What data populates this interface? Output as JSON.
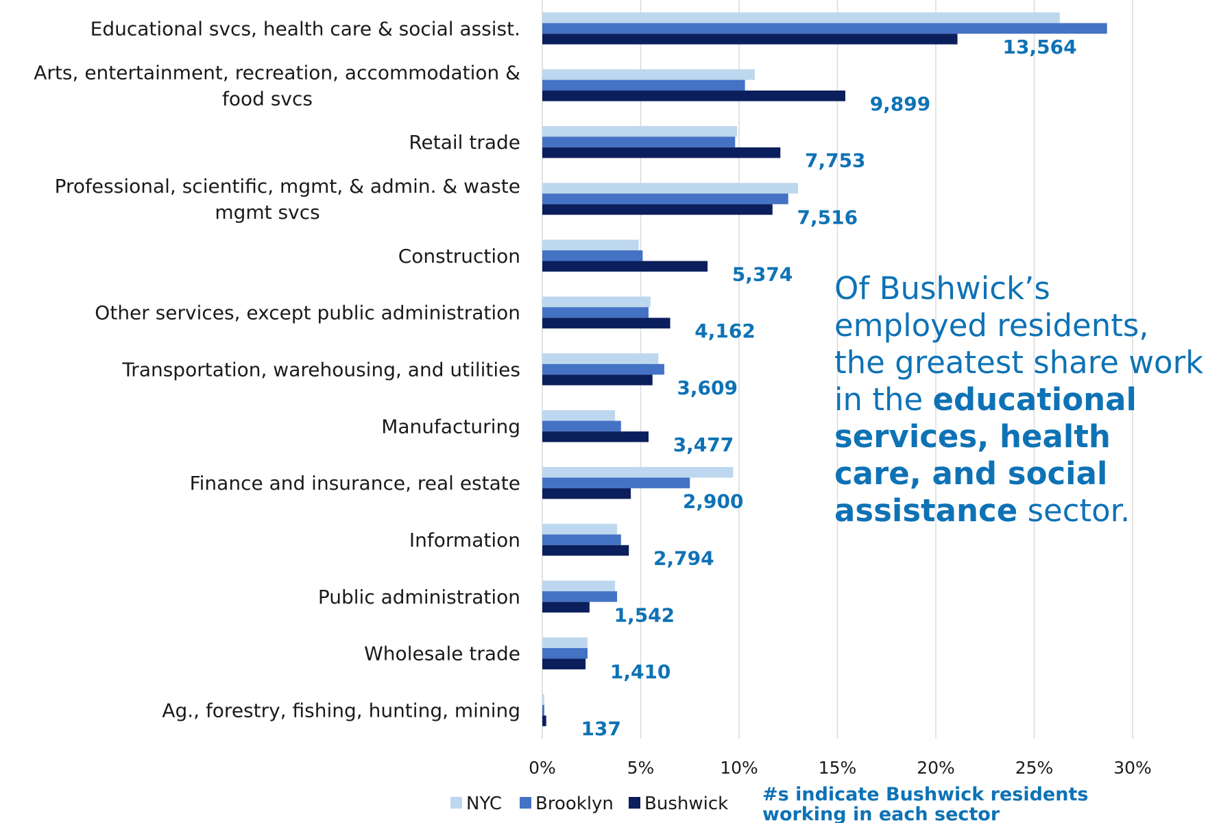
{
  "chart_data": {
    "type": "bar",
    "orientation": "horizontal",
    "categories": [
      "Educational svcs, health care & social assist.",
      "Arts, entertainment, recreation, accommodation & food svcs",
      "Retail trade",
      "Professional, scientific, mgmt, & admin. & waste mgmt svcs",
      "Construction",
      "Other services, except public administration",
      "Transportation, warehousing, and utilities",
      "Manufacturing",
      "Finance and insurance, real estate",
      "Information",
      "Public administration",
      "Wholesale trade",
      "Ag., forestry, fishing, hunting, mining"
    ],
    "category_lines": [
      [
        "Educational svcs, health care & social assist."
      ],
      [
        "Arts, entertainment, recreation, accommodation &",
        "food svcs"
      ],
      [
        "Retail trade"
      ],
      [
        "Professional, scientific, mgmt, & admin. & waste",
        "mgmt svcs"
      ],
      [
        "Construction"
      ],
      [
        "Other services, except public administration"
      ],
      [
        "Transportation, warehousing, and utilities"
      ],
      [
        "Manufacturing"
      ],
      [
        "Finance and insurance, real estate"
      ],
      [
        "Information"
      ],
      [
        "Public administration"
      ],
      [
        "Wholesale trade"
      ],
      [
        "Ag., forestry, fishing, hunting, mining"
      ]
    ],
    "series": [
      {
        "name": "NYC",
        "color": "#bdd7ee",
        "values": [
          26.3,
          10.8,
          9.9,
          13.0,
          4.9,
          5.5,
          5.9,
          3.7,
          9.7,
          3.8,
          3.7,
          2.3,
          0.1
        ]
      },
      {
        "name": "Brooklyn",
        "color": "#4472c4",
        "values": [
          28.7,
          10.3,
          9.8,
          12.5,
          5.1,
          5.4,
          6.2,
          4.0,
          7.5,
          4.0,
          3.8,
          2.3,
          0.1
        ]
      },
      {
        "name": "Bushwick",
        "color": "#0b1f5c",
        "values": [
          21.1,
          15.4,
          12.1,
          11.7,
          8.4,
          6.5,
          5.6,
          5.4,
          4.5,
          4.4,
          2.4,
          2.2,
          0.2
        ]
      }
    ],
    "bushwick_counts": [
      "13,564",
      "9,899",
      "7,753",
      "7,516",
      "5,374",
      "4,162",
      "3,609",
      "3,477",
      "2,900",
      "2,794",
      "1,542",
      "1,410",
      "137"
    ],
    "x_ticks": [
      0,
      5,
      10,
      15,
      20,
      25,
      30
    ],
    "x_tick_labels": [
      "0%",
      "5%",
      "10%",
      "15%",
      "20%",
      "25%",
      "30%"
    ],
    "xlim": [
      0,
      30
    ],
    "grid": "vertical",
    "legend": "bottom-center",
    "title": "",
    "xlabel": "",
    "ylabel": ""
  },
  "note": {
    "line1": "#s indicate Bushwick residents",
    "line2": "working in each sector"
  },
  "callout": {
    "text_start": "Of Bushwick’s employed residents, the greatest share work in the ",
    "text_bold": "educational services, health care, and social assistance",
    "text_end": " sector."
  },
  "colors": {
    "accent": "#0e72b5",
    "grid": "#d9d9d9"
  }
}
